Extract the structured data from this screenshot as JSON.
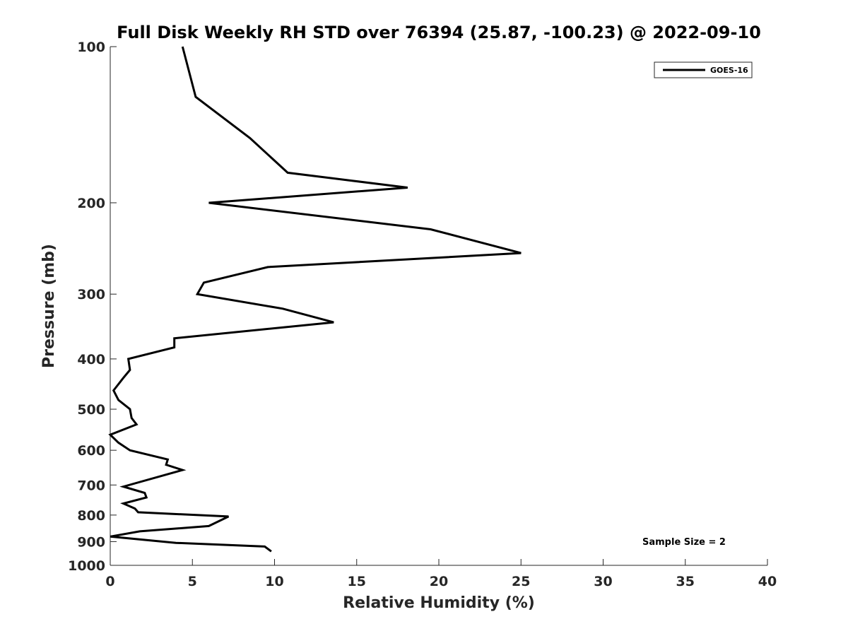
{
  "chart_data": {
    "type": "line",
    "title": "Full Disk Weekly RH STD over 76394 (25.87, -100.23) @ 2022-09-10",
    "xlabel": "Relative Humidity (%)",
    "ylabel": "Pressure (mb)",
    "xlim": [
      0,
      40
    ],
    "ylim": [
      100,
      1000
    ],
    "y_scale": "log",
    "y_reversed": true,
    "x_ticks": [
      "0",
      "5",
      "10",
      "15",
      "20",
      "25",
      "30",
      "35",
      "40"
    ],
    "y_ticks": [
      "100",
      "200",
      "300",
      "400",
      "500",
      "600",
      "700",
      "800",
      "900",
      "1000"
    ],
    "grid": false,
    "legend": {
      "position": "top-right",
      "entries": [
        "GOES-16"
      ]
    },
    "annotation": "Sample Size = 2",
    "series": [
      {
        "name": "GOES-16",
        "color": "#000000",
        "points": [
          [
            4.4,
            100
          ],
          [
            5.2,
            125
          ],
          [
            8.5,
            150
          ],
          [
            10.8,
            175
          ],
          [
            18.1,
            187
          ],
          [
            6.0,
            200
          ],
          [
            19.5,
            225
          ],
          [
            25.0,
            250
          ],
          [
            9.6,
            266
          ],
          [
            5.7,
            285
          ],
          [
            5.3,
            300
          ],
          [
            10.5,
            320
          ],
          [
            13.6,
            340
          ],
          [
            3.9,
            365
          ],
          [
            3.9,
            380
          ],
          [
            1.1,
            400
          ],
          [
            1.2,
            420
          ],
          [
            0.8,
            435
          ],
          [
            0.2,
            460
          ],
          [
            0.5,
            480
          ],
          [
            1.2,
            500
          ],
          [
            1.3,
            520
          ],
          [
            1.6,
            535
          ],
          [
            0.0,
            560
          ],
          [
            0.5,
            580
          ],
          [
            1.2,
            600
          ],
          [
            3.5,
            625
          ],
          [
            3.4,
            640
          ],
          [
            4.4,
            655
          ],
          [
            0.8,
            705
          ],
          [
            2.1,
            725
          ],
          [
            2.2,
            740
          ],
          [
            0.8,
            760
          ],
          [
            1.5,
            777
          ],
          [
            1.7,
            790
          ],
          [
            7.2,
            805
          ],
          [
            6.0,
            840
          ],
          [
            1.8,
            860
          ],
          [
            0.0,
            880
          ],
          [
            4.0,
            905
          ],
          [
            9.4,
            920
          ],
          [
            9.8,
            940
          ]
        ]
      }
    ]
  }
}
